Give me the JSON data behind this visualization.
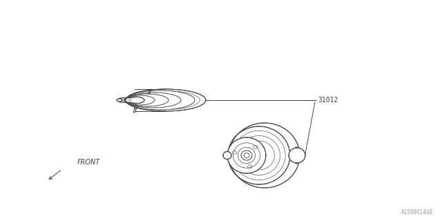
{
  "bg_color": "#ffffff",
  "line_color": "#404040",
  "label_31012": "31012",
  "label_front": "FRONT",
  "watermark": "A150001448",
  "fig_width": 6.4,
  "fig_height": 3.2,
  "dpi": 100
}
